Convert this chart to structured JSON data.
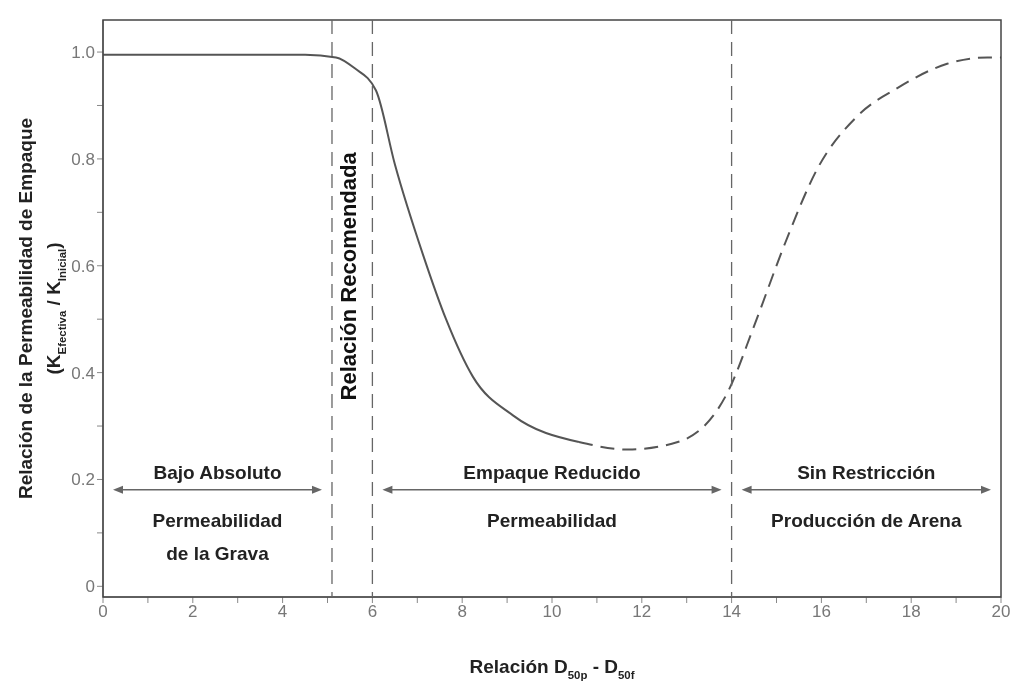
{
  "chart_data": {
    "type": "line",
    "xlabel": "Relación D$_{50p}$ - D$_{50f}$",
    "ylabel": "Relación de la Permeabilidad de Empaque (K$_{Efectiva}$ / K$_{Inicial}$)",
    "xlim": [
      0,
      20
    ],
    "ylim": [
      -0.02,
      1.06
    ],
    "xticks": [
      0,
      {
        "value": 1,
        "label": null
      },
      2,
      {
        "value": 3,
        "label": null
      },
      4,
      {
        "value": 5,
        "label": null
      },
      6,
      {
        "value": 7,
        "label": null
      },
      8,
      {
        "value": 9,
        "label": null
      },
      10,
      {
        "value": 11,
        "label": null
      },
      12,
      {
        "value": 13,
        "label": null
      },
      14,
      {
        "value": 15,
        "label": null
      },
      16,
      {
        "value": 17,
        "label": null
      },
      18,
      {
        "value": 19,
        "label": null
      },
      20
    ],
    "yticks": [
      0,
      {
        "value": 0.1,
        "label": null
      },
      0.2,
      {
        "value": 0.3,
        "label": null
      },
      0.4,
      {
        "value": 0.5,
        "label": null
      },
      0.6,
      {
        "value": 0.7,
        "label": null
      },
      0.8,
      {
        "value": 0.9,
        "label": null
      },
      {
        "value": 1,
        "label": "1.0"
      }
    ],
    "series": [
      {
        "color": "#555555",
        "line_style": "solid",
        "x": [
          0,
          2,
          4.5,
          5.19,
          5.6,
          6.08,
          6.5,
          7.13,
          7.64,
          8.24,
          9.13,
          10.6
        ],
        "values": [
          0.995,
          0.995,
          0.995,
          0.99,
          0.97,
          0.928,
          0.79,
          0.62,
          0.5,
          0.392,
          0.32,
          0.27
        ]
      },
      {
        "color": "#555555",
        "line_style": "dashed",
        "x": [
          10.6,
          11.7,
          12.8,
          13.94,
          14.5,
          15.2,
          15.9,
          16.8,
          17.7,
          18.8,
          19.7,
          20
        ],
        "values": [
          0.27,
          0.256,
          0.27,
          0.368,
          0.487,
          0.644,
          0.78,
          0.88,
          0.933,
          0.978,
          0.99,
          0.99
        ]
      }
    ],
    "ref_lines": [
      {
        "axis": "x",
        "value": 5.1,
        "label": "Relación Recomendada",
        "line_style": "dashed",
        "color": "#666666"
      },
      {
        "axis": "x",
        "value": 6,
        "line_style": "dashed",
        "color": "#666666"
      },
      {
        "axis": "x",
        "value": 14,
        "line_style": "dashed",
        "color": "#666666"
      }
    ],
    "annotations": [
      "Bajo Absoluto",
      "Permeabilidad",
      "de la Grava",
      "Empaque Reducido",
      "Permeabilidad",
      "Sin Restricción",
      "Producción de Arena"
    ]
  }
}
